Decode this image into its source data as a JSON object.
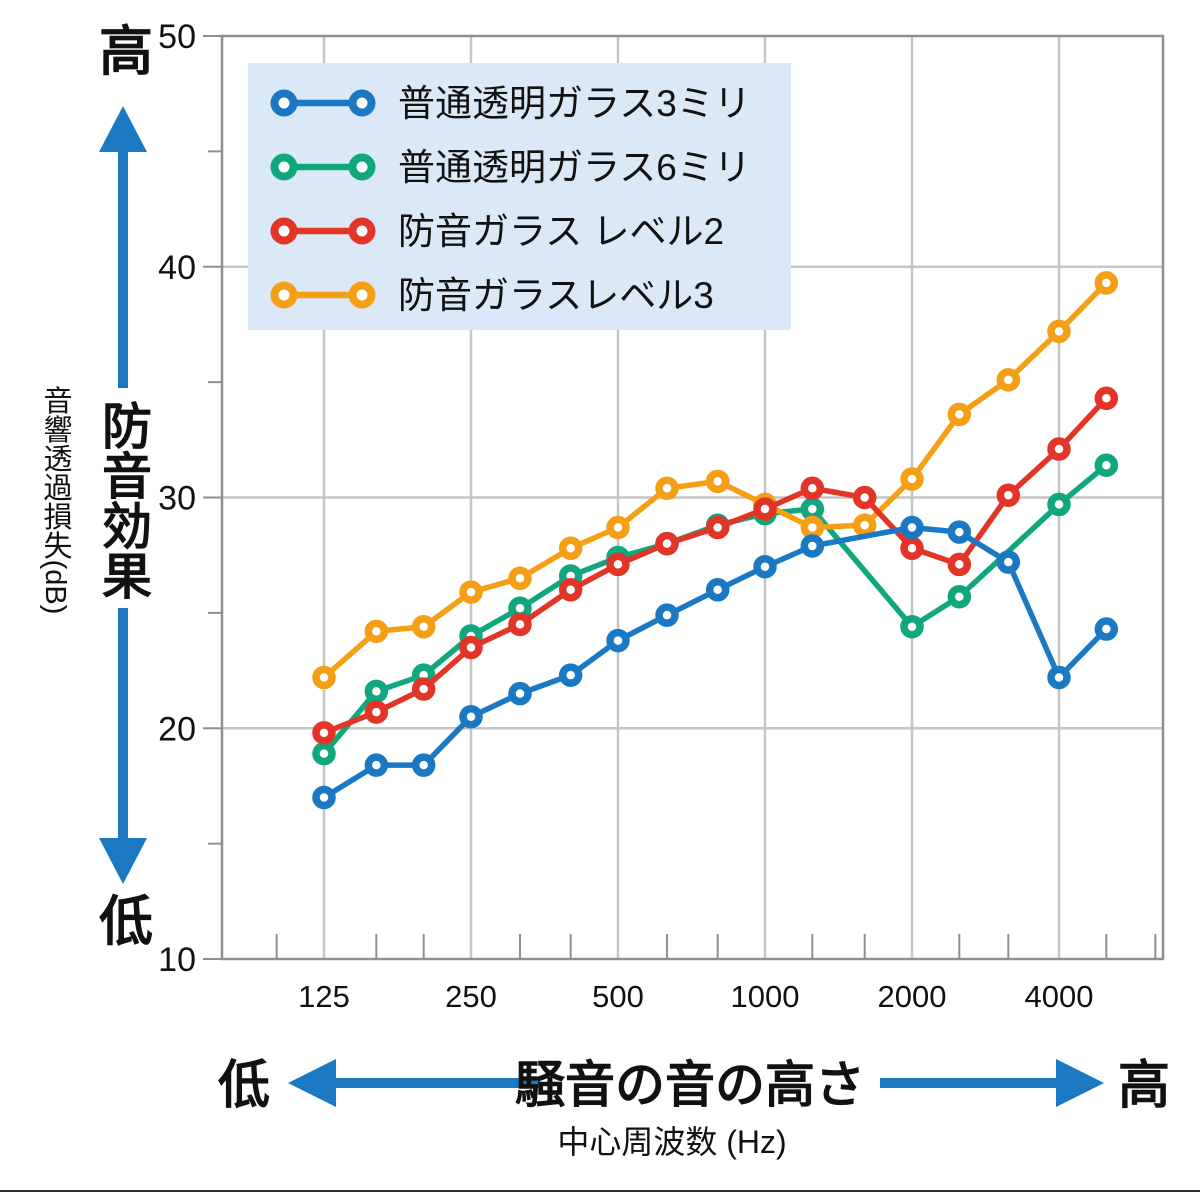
{
  "chart_data": {
    "type": "line",
    "x_scale": "log",
    "x_ticks_labeled": [
      125,
      250,
      500,
      1000,
      2000,
      4000
    ],
    "x_ticks_minor": [
      100,
      160,
      200,
      315,
      400,
      630,
      800,
      1250,
      1600,
      2500,
      3150,
      5000,
      6300
    ],
    "y_ticks": [
      50,
      40,
      30,
      20,
      10
    ],
    "y_ticks_minor": [
      45,
      35,
      25,
      15
    ],
    "ylim": [
      10,
      50
    ],
    "xlabel": "中心周波数 (Hz)",
    "ylabel": "音響透過損失(dB)",
    "legend_position": "top-left",
    "grid": true,
    "series": [
      {
        "name": "普通透明ガラス3ミリ",
        "color": "#1a79c2",
        "points": [
          [
            125,
            17.0
          ],
          [
            160,
            18.4
          ],
          [
            200,
            18.4
          ],
          [
            250,
            20.5
          ],
          [
            315,
            21.5
          ],
          [
            400,
            22.3
          ],
          [
            500,
            23.8
          ],
          [
            630,
            24.9
          ],
          [
            800,
            26.0
          ],
          [
            1000,
            27.0
          ],
          [
            1250,
            27.9
          ],
          [
            2000,
            28.7
          ],
          [
            2500,
            28.5
          ],
          [
            3150,
            27.2
          ],
          [
            4000,
            22.2
          ],
          [
            5000,
            24.3
          ]
        ]
      },
      {
        "name": "普通透明ガラス6ミリ",
        "color": "#10a77e",
        "points": [
          [
            125,
            18.9
          ],
          [
            160,
            21.6
          ],
          [
            200,
            22.3
          ],
          [
            250,
            24.0
          ],
          [
            315,
            25.2
          ],
          [
            400,
            26.6
          ],
          [
            500,
            27.4
          ],
          [
            630,
            28.0
          ],
          [
            800,
            28.8
          ],
          [
            1000,
            29.3
          ],
          [
            1250,
            29.5
          ],
          [
            2000,
            24.4
          ],
          [
            2500,
            25.7
          ],
          [
            4000,
            29.7
          ],
          [
            5000,
            31.4
          ]
        ]
      },
      {
        "name": "防音ガラス レベル2",
        "color": "#e23528",
        "points": [
          [
            125,
            19.8
          ],
          [
            160,
            20.7
          ],
          [
            200,
            21.7
          ],
          [
            250,
            23.5
          ],
          [
            315,
            24.5
          ],
          [
            400,
            26.0
          ],
          [
            500,
            27.1
          ],
          [
            630,
            28.0
          ],
          [
            800,
            28.7
          ],
          [
            1000,
            29.5
          ],
          [
            1250,
            30.4
          ],
          [
            1600,
            30.0
          ],
          [
            2000,
            27.8
          ],
          [
            2500,
            27.1
          ],
          [
            3150,
            30.1
          ],
          [
            4000,
            32.1
          ],
          [
            5000,
            34.3
          ]
        ]
      },
      {
        "name": "防音ガラスレベル3",
        "color": "#f49f15",
        "points": [
          [
            125,
            22.2
          ],
          [
            160,
            24.2
          ],
          [
            200,
            24.4
          ],
          [
            250,
            25.9
          ],
          [
            315,
            26.5
          ],
          [
            400,
            27.8
          ],
          [
            500,
            28.7
          ],
          [
            630,
            30.4
          ],
          [
            800,
            30.7
          ],
          [
            1000,
            29.7
          ],
          [
            1250,
            28.7
          ],
          [
            1600,
            28.8
          ],
          [
            2000,
            30.8
          ],
          [
            2500,
            33.6
          ],
          [
            3150,
            35.1
          ],
          [
            4000,
            37.2
          ],
          [
            5000,
            39.3
          ]
        ]
      }
    ]
  },
  "annotations": {
    "y_high": "高",
    "y_low": "低",
    "y_effect": "防音効果",
    "y_axis_title": "音響透過損失(dB)",
    "x_low": "低",
    "x_high": "高",
    "x_center": "騒音の音の高さ",
    "x_axis_title": "中心周波数 (Hz)"
  },
  "colors": {
    "arrow": "#1a79c2",
    "legend_bg": "#dbe8f7",
    "grid": "#c5c5c5",
    "axis": "#8f8f8f",
    "text": "#111111",
    "bottom_rule": "#2f2f2f"
  }
}
